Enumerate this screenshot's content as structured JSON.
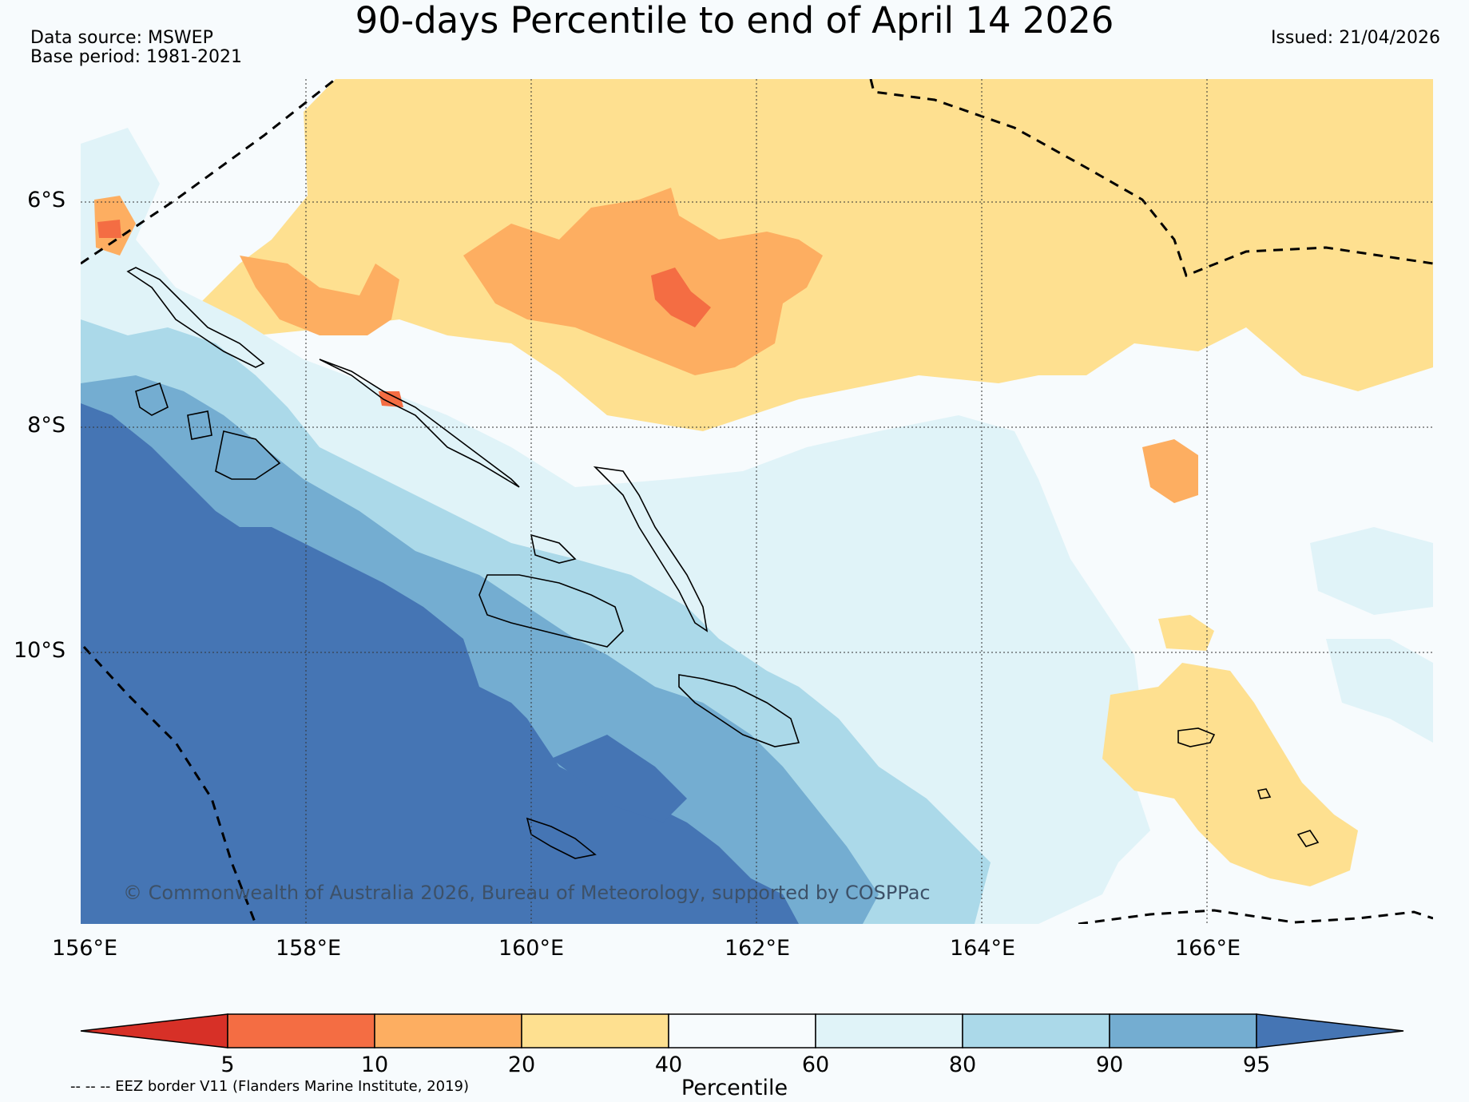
{
  "title": "90-days Percentile to end of April 14 2026",
  "data_source": "Data source: MSWEP",
  "base_period": "Base period: 1981-2021",
  "issued": "Issued: 21/04/2026",
  "copyright": "© Commonwealth of Australia 2026, Bureau of Meteorology, supported by COSPPac",
  "map": {
    "lon_labels": [
      "156°E",
      "158°E",
      "160°E",
      "162°E",
      "164°E",
      "166°E"
    ],
    "lat_labels": [
      "6°S",
      "8°S",
      "10°S"
    ],
    "colors": {
      "p0_5": "#d73027",
      "p5_10": "#f46d43",
      "p10_20": "#fdae61",
      "p20_40": "#fee090",
      "p40_60": "#f7fbfd",
      "p60_80": "#e0f3f8",
      "p80_90": "#abd9e9",
      "p90_95": "#74add1",
      "p95_100": "#4575b4"
    }
  },
  "colorbar": {
    "title": "Percentile",
    "ticks": [
      "5",
      "10",
      "20",
      "40",
      "60",
      "80",
      "90",
      "95"
    ]
  },
  "eez_note": "-- -- -- EEZ border V11 (Flanders Marine Institute, 2019)"
}
